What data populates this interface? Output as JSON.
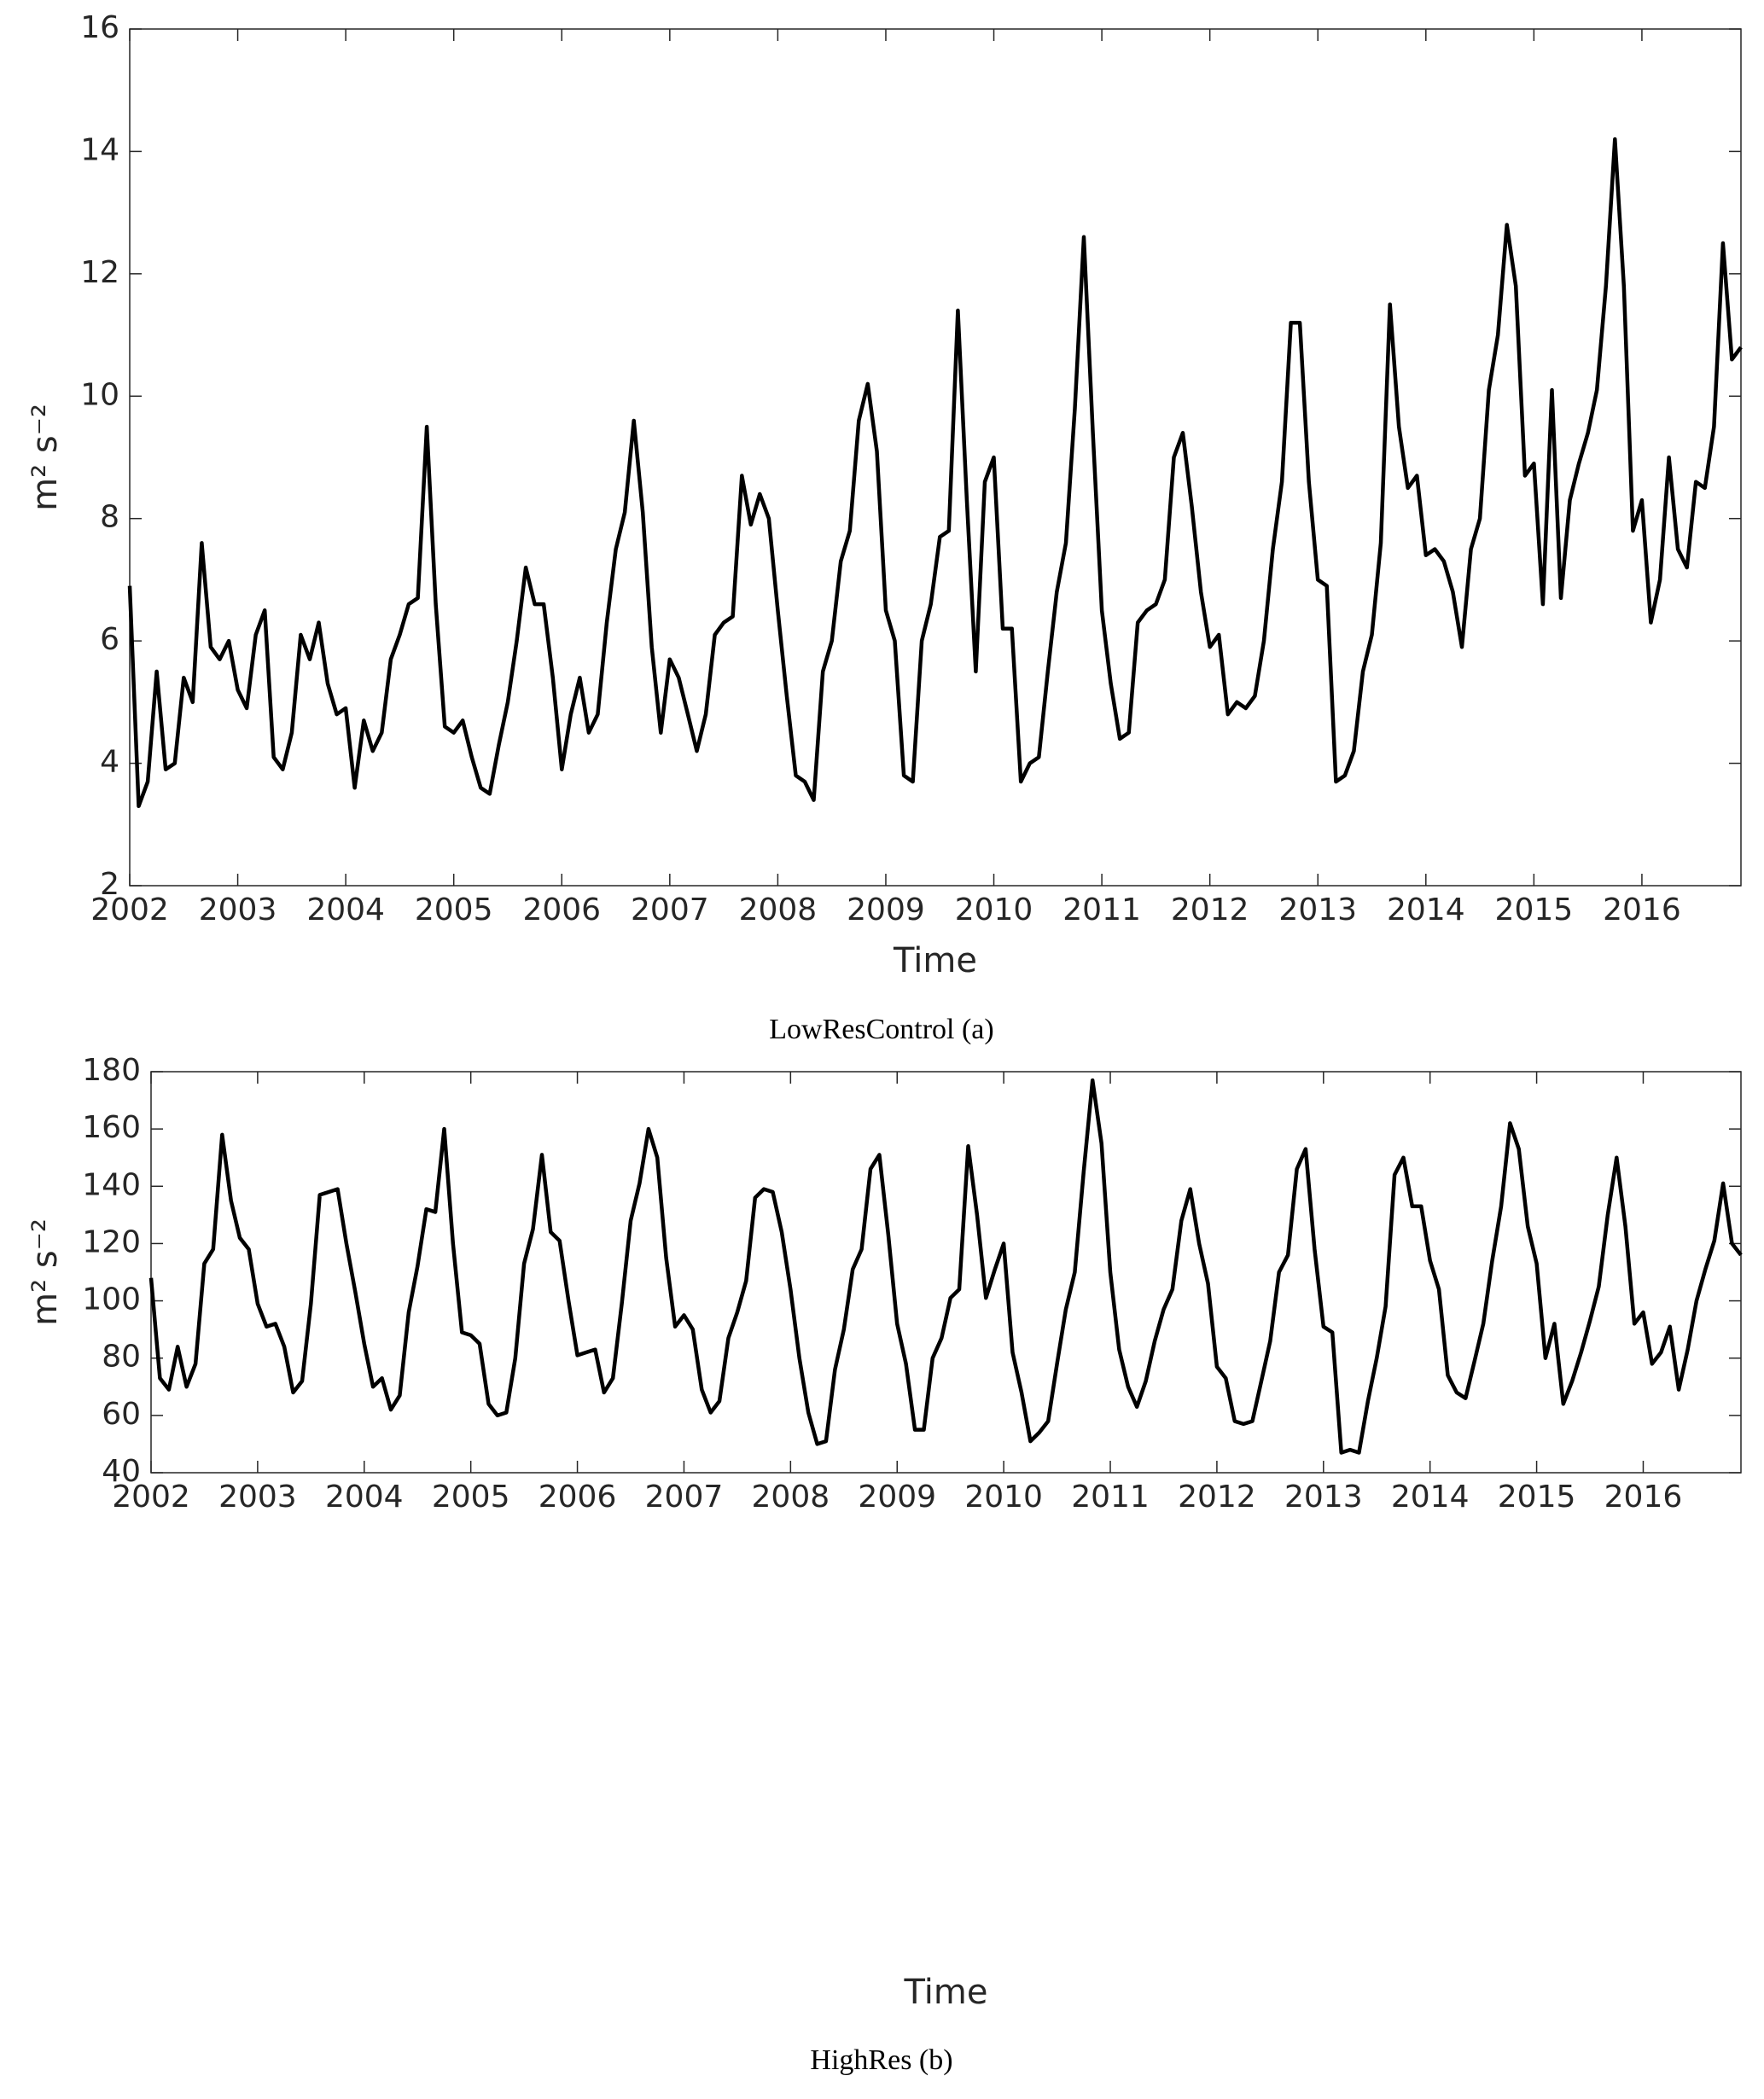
{
  "chart_data": [
    {
      "type": "line",
      "caption": "LowResControl (a)",
      "xlabel": "Time",
      "ylabel": "m² s⁻²",
      "color": "#000000",
      "xlim": [
        2002,
        2016.917
      ],
      "xticks": [
        2002,
        2003,
        2004,
        2005,
        2006,
        2007,
        2008,
        2009,
        2010,
        2011,
        2012,
        2013,
        2014,
        2015,
        2016
      ],
      "ylim": [
        2,
        16
      ],
      "yticks": [
        2,
        4,
        6,
        8,
        10,
        12,
        14,
        16
      ],
      "x": [
        2002,
        2002.083,
        2002.167,
        2002.25,
        2002.333,
        2002.417,
        2002.5,
        2002.583,
        2002.667,
        2002.75,
        2002.833,
        2002.917,
        2003,
        2003.083,
        2003.167,
        2003.25,
        2003.333,
        2003.417,
        2003.5,
        2003.583,
        2003.667,
        2003.75,
        2003.833,
        2003.917,
        2004,
        2004.083,
        2004.167,
        2004.25,
        2004.333,
        2004.417,
        2004.5,
        2004.583,
        2004.667,
        2004.75,
        2004.833,
        2004.917,
        2005,
        2005.083,
        2005.167,
        2005.25,
        2005.333,
        2005.417,
        2005.5,
        2005.583,
        2005.667,
        2005.75,
        2005.833,
        2005.917,
        2006,
        2006.083,
        2006.167,
        2006.25,
        2006.333,
        2006.417,
        2006.5,
        2006.583,
        2006.667,
        2006.75,
        2006.833,
        2006.917,
        2007,
        2007.083,
        2007.167,
        2007.25,
        2007.333,
        2007.417,
        2007.5,
        2007.583,
        2007.667,
        2007.75,
        2007.833,
        2007.917,
        2008,
        2008.083,
        2008.167,
        2008.25,
        2008.333,
        2008.417,
        2008.5,
        2008.583,
        2008.667,
        2008.75,
        2008.833,
        2008.917,
        2009,
        2009.083,
        2009.167,
        2009.25,
        2009.333,
        2009.417,
        2009.5,
        2009.583,
        2009.667,
        2009.75,
        2009.833,
        2009.917,
        2010,
        2010.083,
        2010.167,
        2010.25,
        2010.333,
        2010.417,
        2010.5,
        2010.583,
        2010.667,
        2010.75,
        2010.833,
        2010.917,
        2011,
        2011.083,
        2011.167,
        2011.25,
        2011.333,
        2011.417,
        2011.5,
        2011.583,
        2011.667,
        2011.75,
        2011.833,
        2011.917,
        2012,
        2012.083,
        2012.167,
        2012.25,
        2012.333,
        2012.417,
        2012.5,
        2012.583,
        2012.667,
        2012.75,
        2012.833,
        2012.917,
        2013,
        2013.083,
        2013.167,
        2013.25,
        2013.333,
        2013.417,
        2013.5,
        2013.583,
        2013.667,
        2013.75,
        2013.833,
        2013.917,
        2014,
        2014.083,
        2014.167,
        2014.25,
        2014.333,
        2014.417,
        2014.5,
        2014.583,
        2014.667,
        2014.75,
        2014.833,
        2014.917,
        2015,
        2015.083,
        2015.167,
        2015.25,
        2015.333,
        2015.417,
        2015.5,
        2015.583,
        2015.667,
        2015.75,
        2015.833,
        2015.917,
        2016,
        2016.083,
        2016.167,
        2016.25,
        2016.333,
        2016.417,
        2016.5,
        2016.583,
        2016.667,
        2016.75,
        2016.833,
        2016.917
      ],
      "values": [
        6.9,
        3.3,
        3.7,
        5.5,
        3.9,
        4.0,
        5.4,
        5.0,
        7.6,
        5.9,
        5.7,
        6.0,
        5.2,
        4.9,
        6.1,
        6.5,
        4.1,
        3.9,
        4.5,
        6.1,
        5.7,
        6.3,
        5.3,
        4.8,
        4.9,
        3.6,
        4.7,
        4.2,
        4.5,
        5.7,
        6.1,
        6.6,
        6.7,
        9.5,
        6.6,
        4.6,
        4.5,
        4.7,
        4.1,
        3.6,
        3.5,
        4.3,
        5.0,
        6.0,
        7.2,
        6.6,
        6.6,
        5.4,
        3.9,
        4.8,
        5.4,
        4.5,
        4.8,
        6.3,
        7.5,
        8.1,
        9.6,
        8.1,
        5.9,
        4.5,
        5.7,
        5.4,
        4.8,
        4.2,
        4.8,
        6.1,
        6.3,
        6.4,
        8.7,
        7.9,
        8.4,
        8.0,
        6.5,
        5.1,
        3.8,
        3.7,
        3.4,
        5.5,
        6.0,
        7.3,
        7.8,
        9.6,
        10.2,
        9.1,
        6.5,
        6.0,
        3.8,
        3.7,
        6.0,
        6.6,
        7.7,
        7.8,
        11.4,
        8.3,
        5.5,
        8.6,
        9.0,
        6.2,
        6.2,
        3.7,
        4.0,
        4.1,
        5.5,
        6.8,
        7.6,
        9.8,
        12.6,
        9.4,
        6.5,
        5.3,
        4.4,
        4.5,
        6.3,
        6.5,
        6.6,
        7.0,
        9.0,
        9.4,
        8.2,
        6.8,
        5.9,
        6.1,
        4.8,
        5.0,
        4.9,
        5.1,
        6.0,
        7.5,
        8.6,
        11.2,
        11.2,
        8.6,
        7.0,
        6.9,
        3.7,
        3.8,
        4.2,
        5.5,
        6.1,
        7.6,
        11.5,
        9.5,
        8.5,
        8.7,
        7.4,
        7.5,
        7.3,
        6.8,
        5.9,
        7.5,
        8.0,
        10.1,
        11.0,
        12.8,
        11.8,
        8.7,
        8.9,
        6.6,
        10.1,
        6.7,
        8.3,
        8.9,
        9.4,
        10.1,
        11.8,
        14.2,
        11.8,
        7.8,
        8.3,
        6.3,
        7.0,
        9.0,
        7.5,
        7.2,
        8.6,
        8.5,
        9.5,
        12.5,
        10.6,
        10.8
      ]
    },
    {
      "type": "line",
      "caption": "HighRes (b)",
      "xlabel": "Time",
      "ylabel": "m² s⁻²",
      "color": "#000000",
      "xlim": [
        2002,
        2016.917
      ],
      "xticks": [
        2002,
        2003,
        2004,
        2005,
        2006,
        2007,
        2008,
        2009,
        2010,
        2011,
        2012,
        2013,
        2014,
        2015,
        2016
      ],
      "ylim": [
        40,
        180
      ],
      "yticks": [
        40,
        60,
        80,
        100,
        120,
        140,
        160,
        180
      ],
      "x": [
        2002,
        2002.083,
        2002.167,
        2002.25,
        2002.333,
        2002.417,
        2002.5,
        2002.583,
        2002.667,
        2002.75,
        2002.833,
        2002.917,
        2003,
        2003.083,
        2003.167,
        2003.25,
        2003.333,
        2003.417,
        2003.5,
        2003.583,
        2003.667,
        2003.75,
        2003.833,
        2003.917,
        2004,
        2004.083,
        2004.167,
        2004.25,
        2004.333,
        2004.417,
        2004.5,
        2004.583,
        2004.667,
        2004.75,
        2004.833,
        2004.917,
        2005,
        2005.083,
        2005.167,
        2005.25,
        2005.333,
        2005.417,
        2005.5,
        2005.583,
        2005.667,
        2005.75,
        2005.833,
        2005.917,
        2006,
        2006.083,
        2006.167,
        2006.25,
        2006.333,
        2006.417,
        2006.5,
        2006.583,
        2006.667,
        2006.75,
        2006.833,
        2006.917,
        2007,
        2007.083,
        2007.167,
        2007.25,
        2007.333,
        2007.417,
        2007.5,
        2007.583,
        2007.667,
        2007.75,
        2007.833,
        2007.917,
        2008,
        2008.083,
        2008.167,
        2008.25,
        2008.333,
        2008.417,
        2008.5,
        2008.583,
        2008.667,
        2008.75,
        2008.833,
        2008.917,
        2009,
        2009.083,
        2009.167,
        2009.25,
        2009.333,
        2009.417,
        2009.5,
        2009.583,
        2009.667,
        2009.75,
        2009.833,
        2009.917,
        2010,
        2010.083,
        2010.167,
        2010.25,
        2010.333,
        2010.417,
        2010.5,
        2010.583,
        2010.667,
        2010.75,
        2010.833,
        2010.917,
        2011,
        2011.083,
        2011.167,
        2011.25,
        2011.333,
        2011.417,
        2011.5,
        2011.583,
        2011.667,
        2011.75,
        2011.833,
        2011.917,
        2012,
        2012.083,
        2012.167,
        2012.25,
        2012.333,
        2012.417,
        2012.5,
        2012.583,
        2012.667,
        2012.75,
        2012.833,
        2012.917,
        2013,
        2013.083,
        2013.167,
        2013.25,
        2013.333,
        2013.417,
        2013.5,
        2013.583,
        2013.667,
        2013.75,
        2013.833,
        2013.917,
        2014,
        2014.083,
        2014.167,
        2014.25,
        2014.333,
        2014.417,
        2014.5,
        2014.583,
        2014.667,
        2014.75,
        2014.833,
        2014.917,
        2015,
        2015.083,
        2015.167,
        2015.25,
        2015.333,
        2015.417,
        2015.5,
        2015.583,
        2015.667,
        2015.75,
        2015.833,
        2015.917,
        2016,
        2016.083,
        2016.167,
        2016.25,
        2016.333,
        2016.417,
        2016.5,
        2016.583,
        2016.667,
        2016.75,
        2016.833,
        2016.917
      ],
      "values": [
        108,
        73,
        69,
        84,
        70,
        78,
        113,
        118,
        158,
        135,
        122,
        118,
        99,
        91,
        92,
        84,
        68,
        72,
        99,
        137,
        138,
        139,
        120,
        103,
        85,
        70,
        73,
        62,
        67,
        96,
        112,
        132,
        131,
        160,
        120,
        89,
        88,
        85,
        64,
        60,
        61,
        80,
        113,
        125,
        151,
        124,
        121,
        100,
        81,
        82,
        83,
        68,
        73,
        99,
        128,
        141,
        160,
        150,
        115,
        91,
        95,
        90,
        69,
        61,
        65,
        87,
        96,
        107,
        136,
        139,
        138,
        124,
        104,
        80,
        61,
        50,
        51,
        76,
        90,
        111,
        118,
        146,
        151,
        123,
        92,
        78,
        55,
        55,
        80,
        87,
        101,
        104,
        154,
        130,
        101,
        111,
        120,
        82,
        68,
        51,
        54,
        58,
        78,
        97,
        110,
        145,
        177,
        155,
        110,
        83,
        70,
        63,
        72,
        86,
        97,
        104,
        128,
        139,
        120,
        106,
        77,
        73,
        58,
        57,
        58,
        72,
        86,
        110,
        116,
        146,
        153,
        118,
        91,
        89,
        47,
        48,
        47,
        65,
        80,
        98,
        144,
        150,
        133,
        133,
        114,
        104,
        74,
        68,
        66,
        79,
        92,
        114,
        133,
        162,
        153,
        126,
        113,
        80,
        92,
        64,
        72,
        82,
        93,
        105,
        130,
        150,
        126,
        92,
        96,
        78,
        82,
        91,
        69,
        83,
        100,
        111,
        121,
        141,
        120,
        116
      ]
    }
  ]
}
